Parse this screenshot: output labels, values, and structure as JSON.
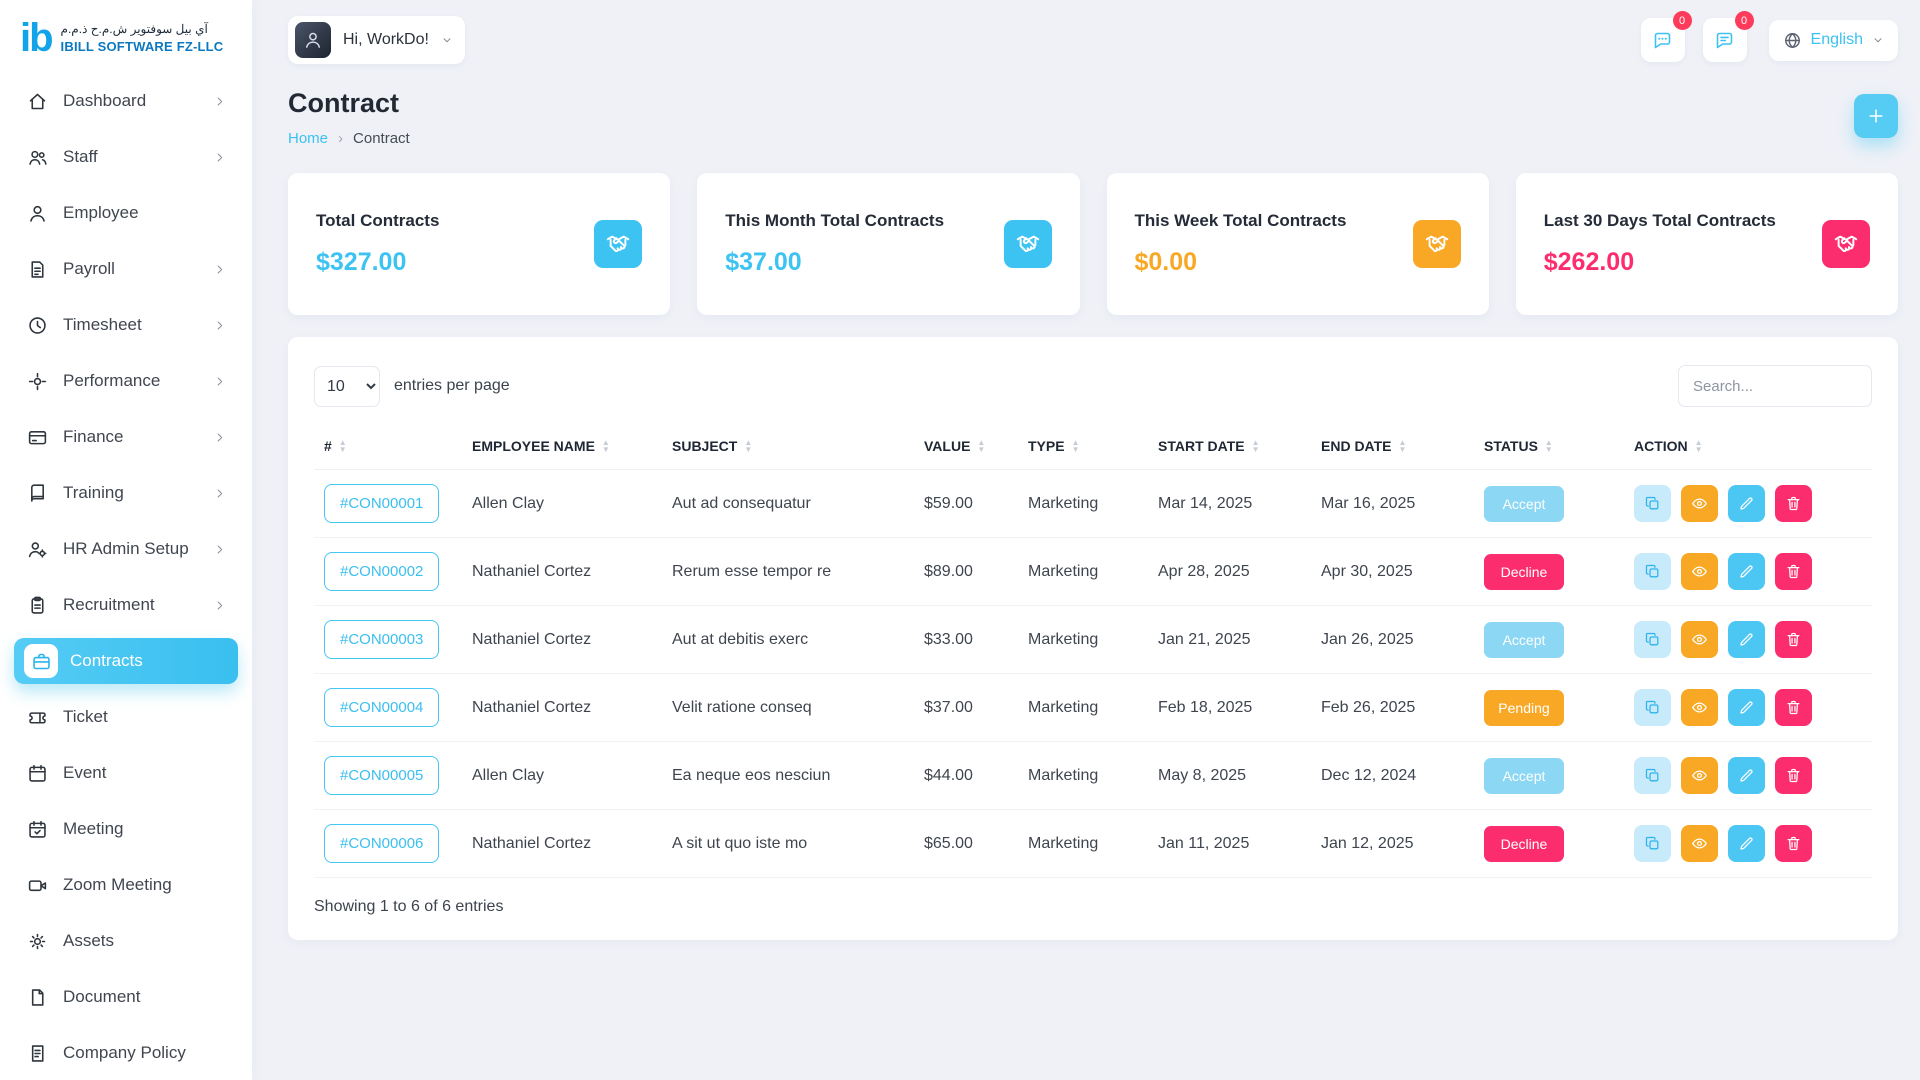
{
  "brand": {
    "logo_text": "ib",
    "tagline_arabic": "آي بيل سوفتوير ش.م.ح ذ.م.م",
    "company_name": "IBILL SOFTWARE FZ-LLC"
  },
  "header": {
    "greeting": "Hi, WorkDo!",
    "notifications": [
      {
        "icon": "chat-dots",
        "badge": "0"
      },
      {
        "icon": "chat-text",
        "badge": "0"
      }
    ],
    "language": {
      "icon": "globe",
      "label": "English"
    }
  },
  "page": {
    "title": "Contract",
    "breadcrumb": [
      "Home",
      "Contract"
    ]
  },
  "stats": [
    {
      "label": "Total Contracts",
      "value": "$327.00",
      "color": "#3DC3F2",
      "icon": "handshake"
    },
    {
      "label": "This Month Total Contracts",
      "value": "$37.00",
      "color": "#3DC3F2",
      "icon": "handshake"
    },
    {
      "label": "This Week Total Contracts",
      "value": "$0.00",
      "color": "#F9A826",
      "icon": "handshake"
    },
    {
      "label": "Last 30 Days Total Contracts",
      "value": "$262.00",
      "color": "#FC2D6E",
      "icon": "handshake"
    }
  ],
  "sidebar": {
    "items": [
      {
        "label": "Dashboard",
        "icon": "home",
        "chevron": true,
        "active": false
      },
      {
        "label": "Staff",
        "icon": "users",
        "chevron": true,
        "active": false
      },
      {
        "label": "Employee",
        "icon": "user",
        "chevron": false,
        "active": false
      },
      {
        "label": "Payroll",
        "icon": "invoice",
        "chevron": true,
        "active": false
      },
      {
        "label": "Timesheet",
        "icon": "clock",
        "chevron": true,
        "active": false
      },
      {
        "label": "Performance",
        "icon": "target",
        "chevron": true,
        "active": false
      },
      {
        "label": "Finance",
        "icon": "card",
        "chevron": true,
        "active": false
      },
      {
        "label": "Training",
        "icon": "book",
        "chevron": true,
        "active": false
      },
      {
        "label": "HR Admin Setup",
        "icon": "user-gear",
        "chevron": true,
        "active": false
      },
      {
        "label": "Recruitment",
        "icon": "clipboard",
        "chevron": true,
        "active": false
      },
      {
        "label": "Contracts",
        "icon": "briefcase",
        "chevron": false,
        "active": true
      },
      {
        "label": "Ticket",
        "icon": "ticket",
        "chevron": false,
        "active": false
      },
      {
        "label": "Event",
        "icon": "calendar",
        "chevron": false,
        "active": false
      },
      {
        "label": "Meeting",
        "icon": "calendar-check",
        "chevron": false,
        "active": false
      },
      {
        "label": "Zoom Meeting",
        "icon": "video",
        "chevron": false,
        "active": false
      },
      {
        "label": "Assets",
        "icon": "gear",
        "chevron": false,
        "active": false
      },
      {
        "label": "Document",
        "icon": "file",
        "chevron": false,
        "active": false
      },
      {
        "label": "Company Policy",
        "icon": "scroll",
        "chevron": false,
        "active": false
      }
    ]
  },
  "table": {
    "entries_per_page": "10",
    "entries_label": "entries per page",
    "search_placeholder": "Search...",
    "columns": [
      "#",
      "EMPLOYEE NAME",
      "SUBJECT",
      "VALUE",
      "TYPE",
      "START DATE",
      "END DATE",
      "STATUS",
      "ACTION"
    ],
    "rows": [
      {
        "id": "#CON00001",
        "employee": "Allen Clay",
        "subject": "Aut ad consequatur",
        "value": "$59.00",
        "type": "Marketing",
        "start_date": "Mar 14, 2025",
        "end_date": "Mar 16, 2025",
        "status": "Accept"
      },
      {
        "id": "#CON00002",
        "employee": "Nathaniel Cortez",
        "subject": "Rerum esse tempor re",
        "value": "$89.00",
        "type": "Marketing",
        "start_date": "Apr 28, 2025",
        "end_date": "Apr 30, 2025",
        "status": "Decline"
      },
      {
        "id": "#CON00003",
        "employee": "Nathaniel Cortez",
        "subject": "Aut at debitis exerc",
        "value": "$33.00",
        "type": "Marketing",
        "start_date": "Jan 21, 2025",
        "end_date": "Jan 26, 2025",
        "status": "Accept"
      },
      {
        "id": "#CON00004",
        "employee": "Nathaniel Cortez",
        "subject": "Velit ratione conseq",
        "value": "$37.00",
        "type": "Marketing",
        "start_date": "Feb 18, 2025",
        "end_date": "Feb 26, 2025",
        "status": "Pending"
      },
      {
        "id": "#CON00005",
        "employee": "Allen Clay",
        "subject": "Ea neque eos nesciun",
        "value": "$44.00",
        "type": "Marketing",
        "start_date": "May 8, 2025",
        "end_date": "Dec 12, 2024",
        "status": "Accept"
      },
      {
        "id": "#CON00006",
        "employee": "Nathaniel Cortez",
        "subject": "A sit ut quo iste mo",
        "value": "$65.00",
        "type": "Marketing",
        "start_date": "Jan 11, 2025",
        "end_date": "Jan 12, 2025",
        "status": "Decline"
      }
    ],
    "actions": [
      {
        "icon": "copy",
        "name": "duplicate"
      },
      {
        "icon": "eye",
        "name": "view"
      },
      {
        "icon": "pencil",
        "name": "edit"
      },
      {
        "icon": "trash",
        "name": "delete"
      }
    ],
    "footer": "Showing 1 to 6 of 6 entries"
  },
  "colors": {
    "primary": "#3DC3F2",
    "status": {
      "Accept": "#8BD7F4",
      "Decline": "#FC2D6E",
      "Pending": "#F9A826"
    },
    "action_buttons": {
      "duplicate_bg": "#C8EBFB",
      "duplicate_fg": "#2FB4EA",
      "view_bg": "#F9A826",
      "edit_bg": "#4CC7F4",
      "delete_bg": "#FC2D6E"
    }
  }
}
